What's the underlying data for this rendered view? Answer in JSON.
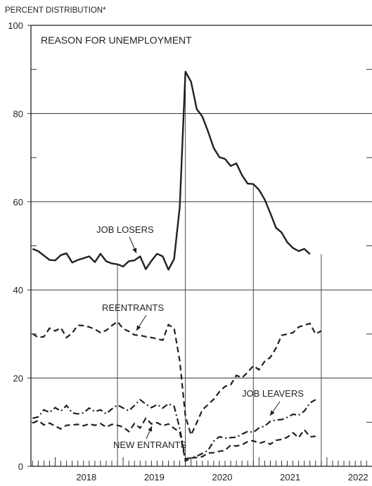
{
  "chart_data": {
    "type": "line",
    "title": "REASON FOR UNEMPLOYMENT",
    "ylabel": "PERCENT DISTRIBUTION*",
    "xlabel": "",
    "ylim": [
      0,
      100
    ],
    "xlim": [
      "2017-09",
      "2023-03"
    ],
    "y_ticks": [
      "0",
      "20",
      "40",
      "60",
      "80",
      "100"
    ],
    "x_tick_labels": [
      "2018",
      "2019",
      "2020",
      "2021",
      "2022"
    ],
    "grid": "horizontal at 20, 40, 60, 80",
    "reference_months": [
      "2018-12",
      "2019-12",
      "2020-12",
      "2021-12"
    ],
    "x": [
      "2017-09",
      "2017-10",
      "2017-11",
      "2017-12",
      "2018-01",
      "2018-02",
      "2018-03",
      "2018-04",
      "2018-05",
      "2018-06",
      "2018-07",
      "2018-08",
      "2018-09",
      "2018-10",
      "2018-11",
      "2018-12",
      "2019-01",
      "2019-02",
      "2019-03",
      "2019-04",
      "2019-05",
      "2019-06",
      "2019-07",
      "2019-08",
      "2019-09",
      "2019-10",
      "2019-11",
      "2019-12",
      "2020-01",
      "2020-02",
      "2020-03",
      "2020-04",
      "2020-05",
      "2020-06",
      "2020-07",
      "2020-08",
      "2020-09",
      "2020-10",
      "2020-11",
      "2020-12",
      "2021-01",
      "2021-02",
      "2021-03",
      "2021-04",
      "2021-05",
      "2021-06",
      "2021-07",
      "2021-08",
      "2021-09",
      "2021-10",
      "2021-11",
      "2021-12",
      "2022-01"
    ],
    "series": [
      {
        "name": "JOB LOSERS",
        "style": "solid",
        "values": [
          49.3,
          48.8,
          47.8,
          46.8,
          46.7,
          47.9,
          48.3,
          46.2,
          46.8,
          47.2,
          47.6,
          46.3,
          48.2,
          46.5,
          46.0,
          45.8,
          45.3,
          46.5,
          46.7,
          47.6,
          44.7,
          46.6,
          48.2,
          47.6,
          44.6,
          47.0,
          58.8,
          89.5,
          87.2,
          81.0,
          79.3,
          75.9,
          72.2,
          70.1,
          69.7,
          68.1,
          68.7,
          66.0,
          64.1,
          64.0,
          62.7,
          60.5,
          57.4,
          54.1,
          53.0,
          50.8,
          49.5,
          48.8,
          49.3,
          48.1,
          null,
          null,
          null
        ],
        "label_month": "2018-08"
      },
      {
        "name": "REENTRANTS",
        "style": "dashed",
        "values": [
          30.1,
          29.2,
          29.4,
          31.3,
          30.7,
          31.4,
          29.2,
          30.2,
          32.0,
          31.9,
          31.6,
          31.1,
          30.3,
          30.8,
          31.9,
          32.8,
          31.2,
          30.6,
          29.8,
          29.7,
          29.4,
          29.2,
          28.9,
          28.6,
          32.1,
          31.3,
          23.9,
          11.3,
          7.1,
          9.9,
          12.8,
          14.0,
          15.2,
          16.9,
          18.1,
          18.5,
          20.6,
          20.1,
          21.3,
          22.8,
          21.9,
          23.8,
          24.7,
          26.8,
          29.7,
          30.0,
          30.3,
          31.6,
          32.0,
          32.4,
          30.0,
          30.7,
          null
        ],
        "label_month": "2018-11"
      },
      {
        "name": "JOB LEAVERS",
        "style": "dashdot",
        "values": [
          10.9,
          11.2,
          12.8,
          12.2,
          13.3,
          12.5,
          13.8,
          12.1,
          11.9,
          12.1,
          13.2,
          12.4,
          12.8,
          11.9,
          13.0,
          13.9,
          13.2,
          12.6,
          13.8,
          15.1,
          14.1,
          13.3,
          14.0,
          13.2,
          14.2,
          13.6,
          8.6,
          1.7,
          1.9,
          2.3,
          2.9,
          3.6,
          5.7,
          6.7,
          6.4,
          6.5,
          6.6,
          7.3,
          7.9,
          7.7,
          8.7,
          9.1,
          10.2,
          10.5,
          10.6,
          11.1,
          11.8,
          11.6,
          12.5,
          14.4,
          15.1,
          null,
          null
        ],
        "label_month": "2021-06"
      },
      {
        "name": "NEW ENTRANTS",
        "style": "dashed",
        "values": [
          9.8,
          10.4,
          9.4,
          9.8,
          9.1,
          8.5,
          9.3,
          9.4,
          9.5,
          9.2,
          9.6,
          9.3,
          9.7,
          8.9,
          9.5,
          9.3,
          8.9,
          7.9,
          9.7,
          8.7,
          10.9,
          9.6,
          9.9,
          9.2,
          9.6,
          8.6,
          7.8,
          1.2,
          1.9,
          2.0,
          2.2,
          3.0,
          3.1,
          3.4,
          3.6,
          4.8,
          4.6,
          4.9,
          5.6,
          5.8,
          5.2,
          5.6,
          5.0,
          5.9,
          6.1,
          6.6,
          7.6,
          6.5,
          8.3,
          6.7,
          6.8,
          null,
          null
        ],
        "label_month": "2019-11"
      }
    ],
    "footnote_marker": "*"
  }
}
